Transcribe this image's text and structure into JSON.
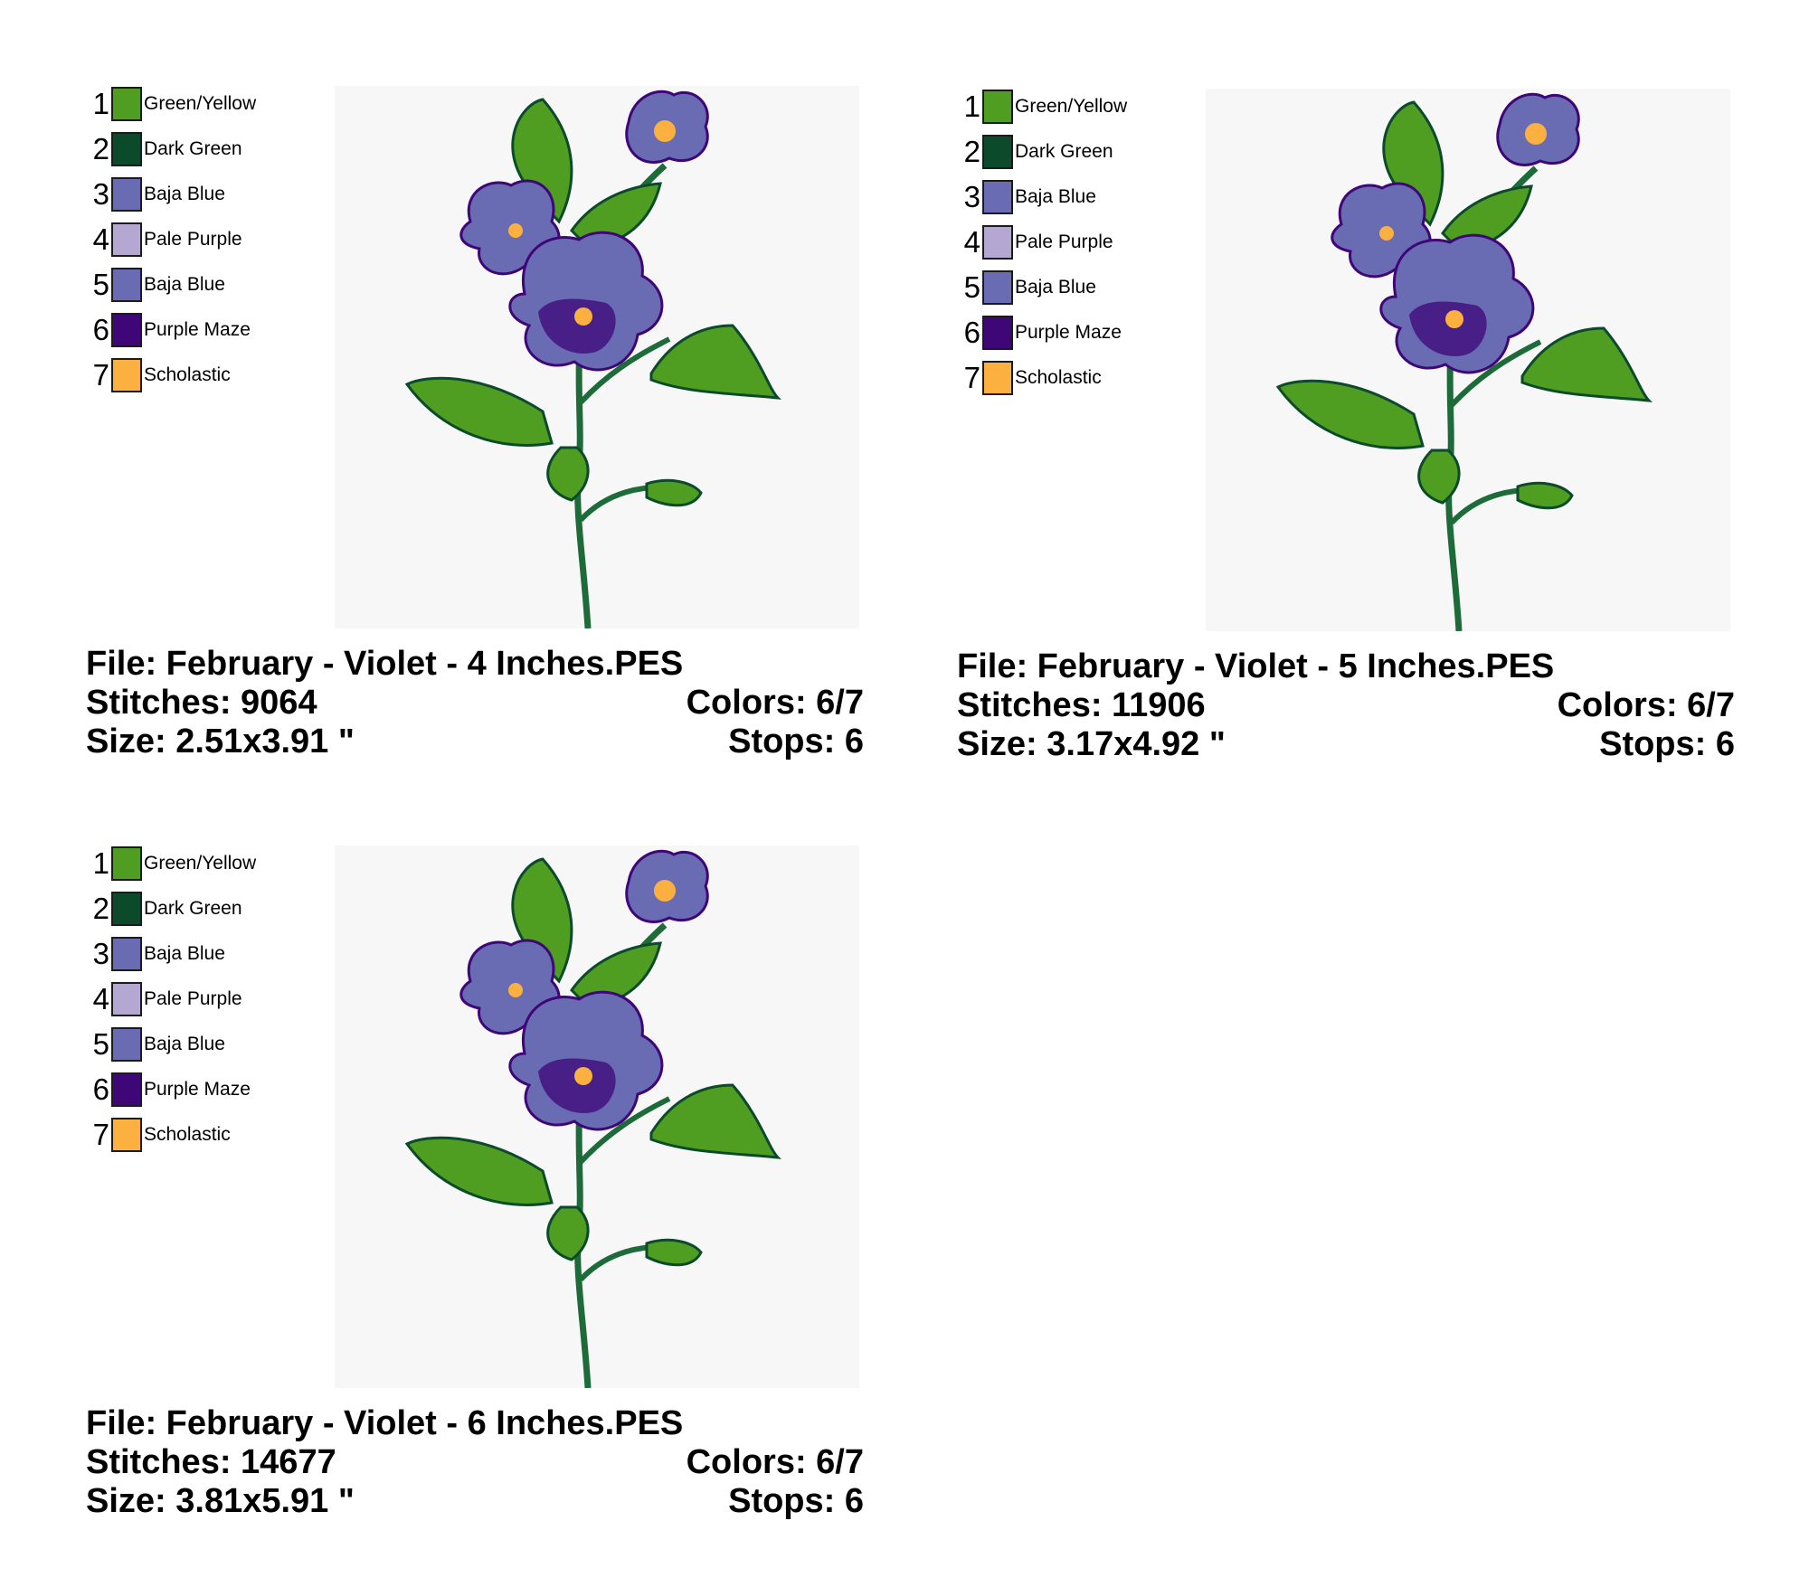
{
  "thread_colors": {
    "green_yellow": "#4f9e22",
    "dark_green": "#0b4a2a",
    "baja_blue": "#6a6cb3",
    "pale_purple": "#b4a8d3",
    "purple_maze": "#3e0677",
    "scholastic": "#fbb040"
  },
  "designs": [
    {
      "file_label": "File: February - Violet - 4 Inches.PES",
      "stitches_label": "Stitches: 9064",
      "colors_label": "Colors: 6/7",
      "size_label": "Size: 2.51x3.91 \"",
      "stops_label": "Stops: 6",
      "threads": [
        {
          "number": "1",
          "name": "Green/Yellow",
          "color": "#4f9e22"
        },
        {
          "number": "2",
          "name": "Dark Green",
          "color": "#0b4a2a"
        },
        {
          "number": "3",
          "name": "Baja Blue",
          "color": "#6a6cb3"
        },
        {
          "number": "4",
          "name": "Pale Purple",
          "color": "#b4a8d3"
        },
        {
          "number": "5",
          "name": "Baja Blue",
          "color": "#6a6cb3"
        },
        {
          "number": "6",
          "name": "Purple Maze",
          "color": "#3e0677"
        },
        {
          "number": "7",
          "name": "Scholastic",
          "color": "#fbb040"
        }
      ]
    },
    {
      "file_label": "File: February - Violet - 5 Inches.PES",
      "stitches_label": "Stitches: 11906",
      "colors_label": "Colors: 6/7",
      "size_label": "Size: 3.17x4.92 \"",
      "stops_label": "Stops: 6",
      "threads": [
        {
          "number": "1",
          "name": "Green/Yellow",
          "color": "#4f9e22"
        },
        {
          "number": "2",
          "name": "Dark Green",
          "color": "#0b4a2a"
        },
        {
          "number": "3",
          "name": "Baja Blue",
          "color": "#6a6cb3"
        },
        {
          "number": "4",
          "name": "Pale Purple",
          "color": "#b4a8d3"
        },
        {
          "number": "5",
          "name": "Baja Blue",
          "color": "#6a6cb3"
        },
        {
          "number": "6",
          "name": "Purple Maze",
          "color": "#3e0677"
        },
        {
          "number": "7",
          "name": "Scholastic",
          "color": "#fbb040"
        }
      ]
    },
    {
      "file_label": "File: February - Violet - 6 Inches.PES",
      "stitches_label": "Stitches: 14677",
      "colors_label": "Colors: 6/7",
      "size_label": "Size: 3.81x5.91 \"",
      "stops_label": "Stops: 6",
      "threads": [
        {
          "number": "1",
          "name": "Green/Yellow",
          "color": "#4f9e22"
        },
        {
          "number": "2",
          "name": "Dark Green",
          "color": "#0b4a2a"
        },
        {
          "number": "3",
          "name": "Baja Blue",
          "color": "#6a6cb3"
        },
        {
          "number": "4",
          "name": "Pale Purple",
          "color": "#b4a8d3"
        },
        {
          "number": "5",
          "name": "Baja Blue",
          "color": "#6a6cb3"
        },
        {
          "number": "6",
          "name": "Purple Maze",
          "color": "#3e0677"
        },
        {
          "number": "7",
          "name": "Scholastic",
          "color": "#fbb040"
        }
      ]
    }
  ]
}
